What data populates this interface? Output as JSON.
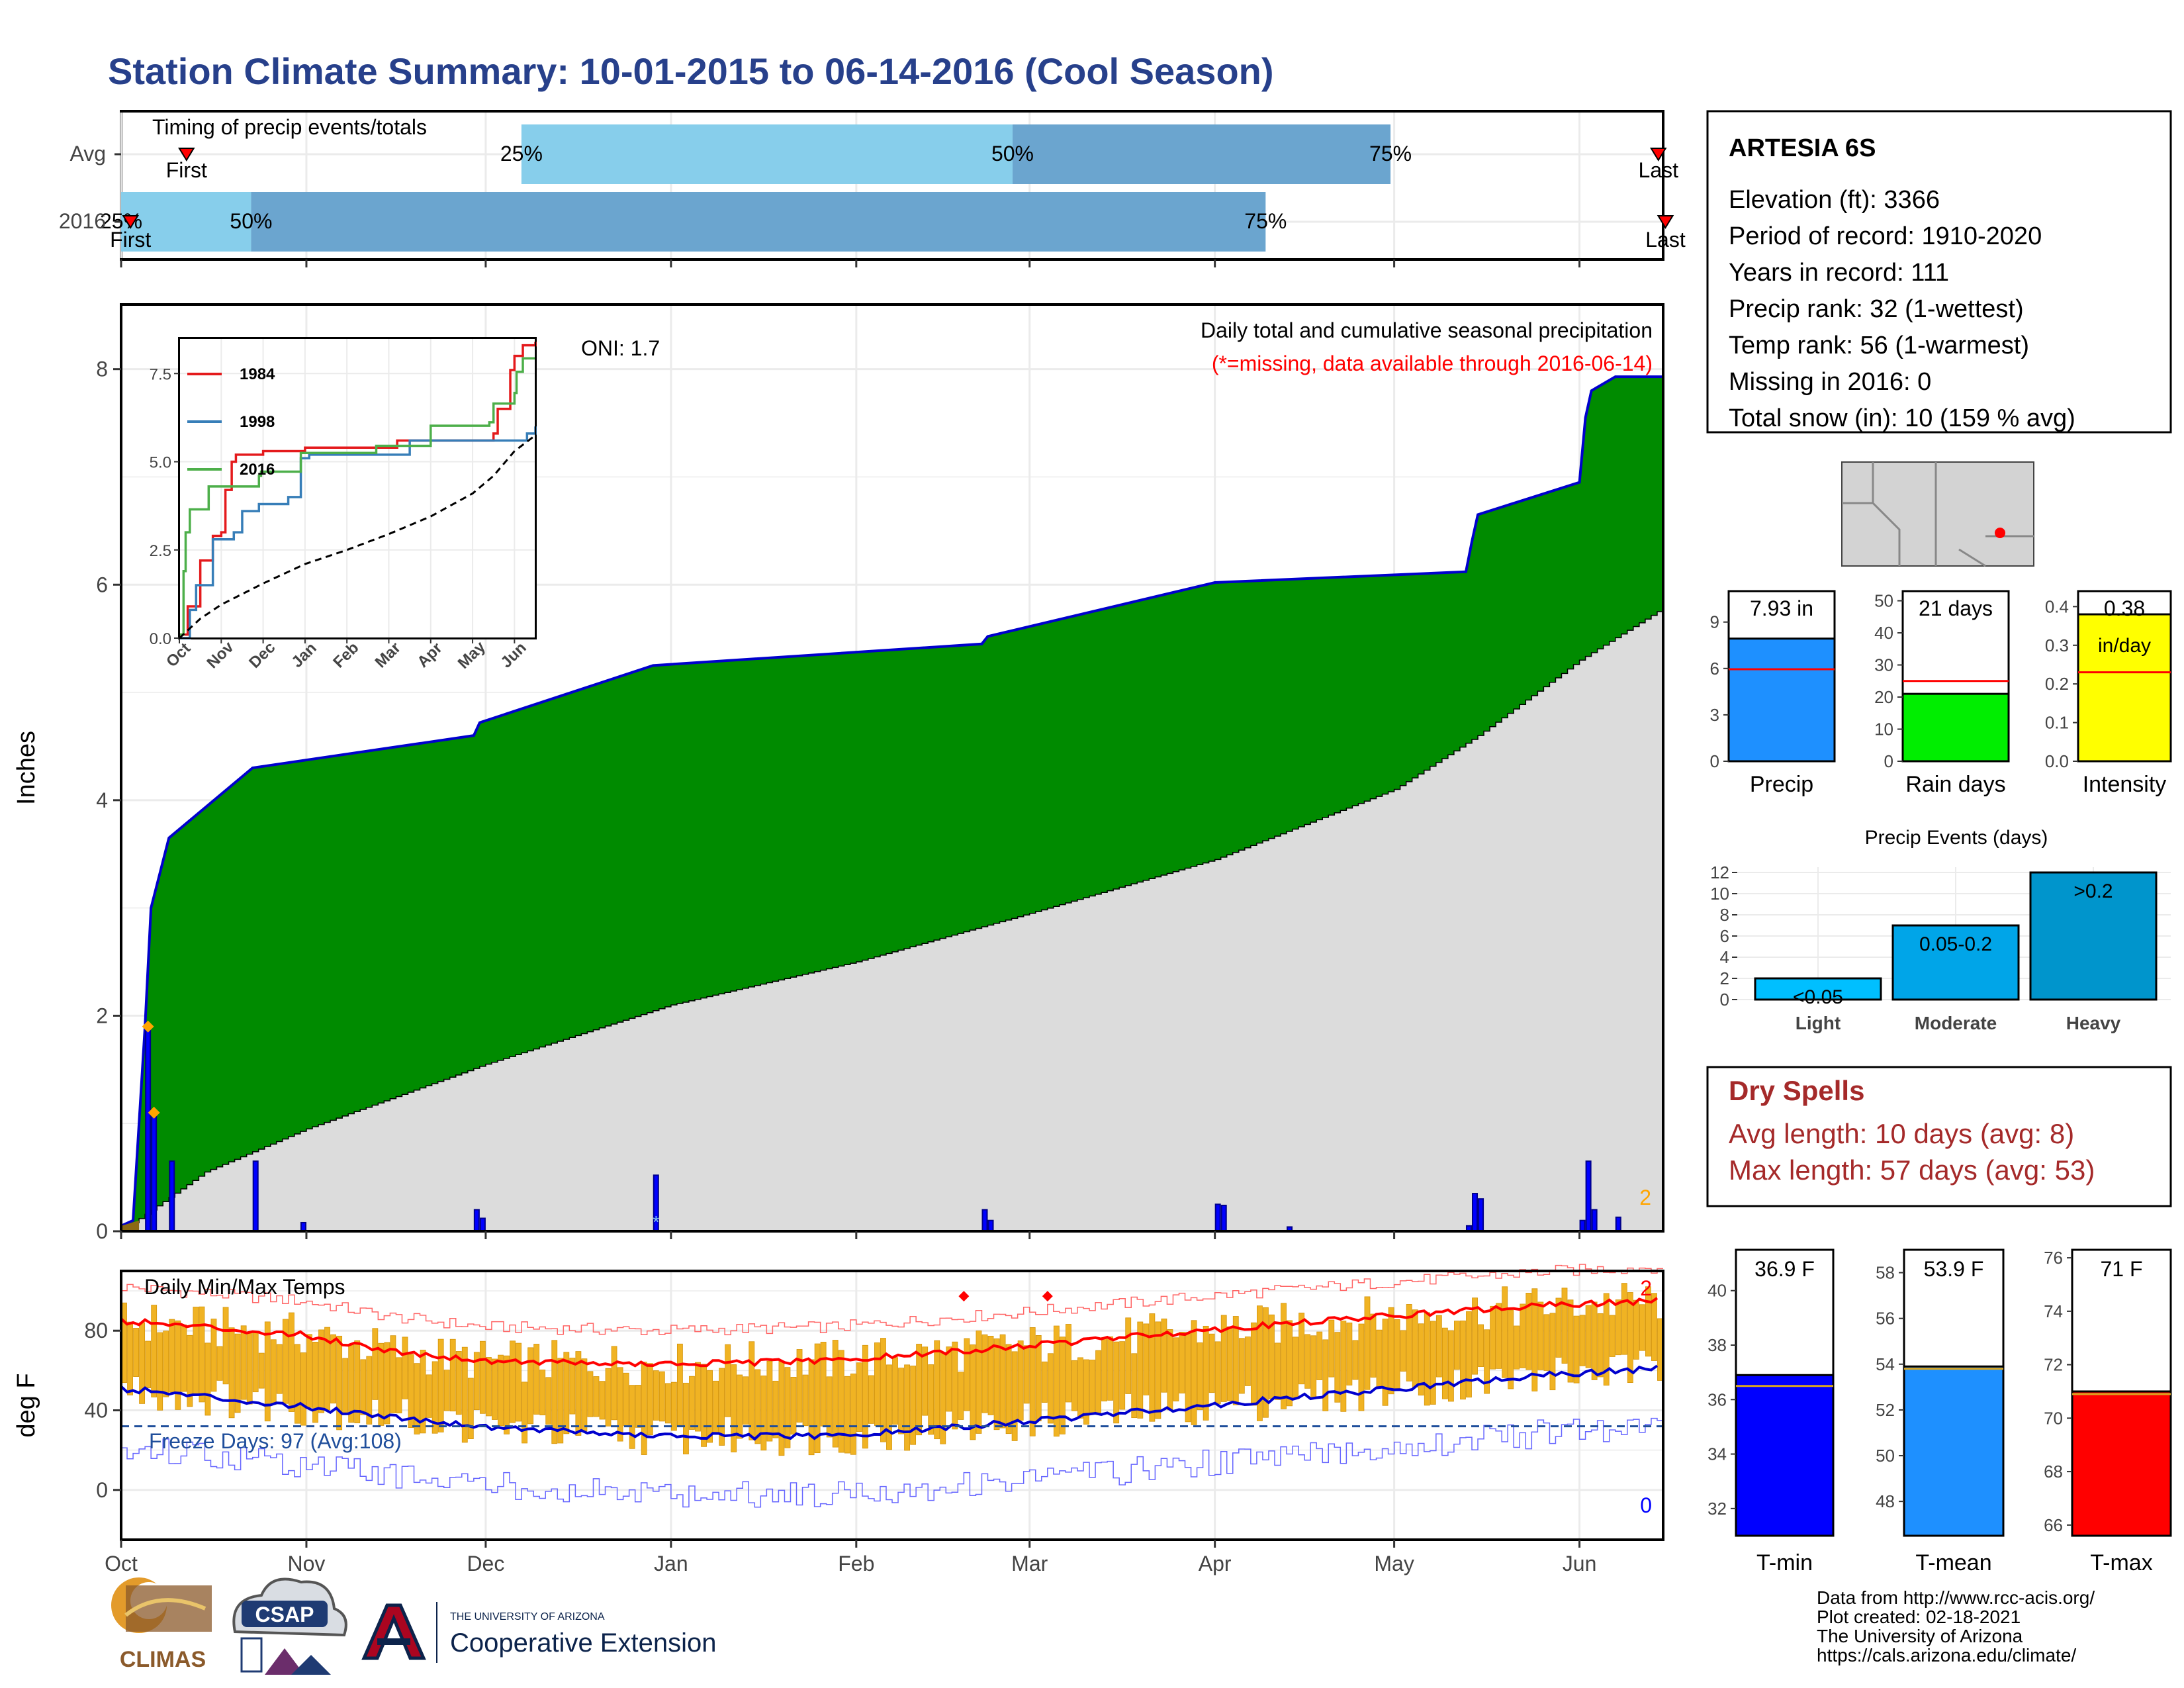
{
  "title": "Station Climate Summary: 10-01-2015 to 06-14-2016 (Cool Season)",
  "months": [
    "Oct",
    "Nov",
    "Dec",
    "Jan",
    "Feb",
    "Mar",
    "Apr",
    "May",
    "Jun"
  ],
  "timing": {
    "label": "Timing of precip events/totals",
    "rows": [
      "Avg",
      "2016"
    ],
    "avg": {
      "p25": 0.2596,
      "p50": 0.5781,
      "p75": 0.8232,
      "first": 0.0424,
      "last": 0.9969
    },
    "y2016": {
      "p25": 0.0,
      "p50": 0.0843,
      "p75": 0.7422,
      "first": 0.0061,
      "last": 1.0015
    },
    "pct_labels": [
      "25%",
      "50%",
      "75%"
    ],
    "first_label": "First",
    "last_label": "Last"
  },
  "precip_panel": {
    "ylabel": "Inches",
    "note1": "Daily total and cumulative seasonal precipitation",
    "note2": "(*=missing, data available through 2016-06-14)",
    "oni": "ONI: 1.7",
    "corner_count": "2",
    "yticks": [
      0,
      2,
      4,
      6,
      8
    ]
  },
  "inset": {
    "legend": [
      "1984",
      "1998",
      "2016"
    ],
    "colors": [
      "#e41a1c",
      "#377eb8",
      "#4daf4a"
    ],
    "yticks": [
      "0.0",
      "2.5",
      "5.0",
      "7.5"
    ]
  },
  "temp_panel": {
    "label": "Daily Min/Max Temps",
    "ylabel": "deg F",
    "freeze": "Freeze Days: 97 (Avg:108)",
    "count_high": "2",
    "count_low": "0",
    "yticks": [
      0,
      40,
      80
    ]
  },
  "station": {
    "name": "ARTESIA 6S",
    "lines": [
      "Elevation (ft): 3366",
      "Period of record: 1910-2020",
      "Years in record: 111",
      "Precip rank: 32 (1-wettest)",
      "Temp rank: 56 (1-warmest)",
      "Missing in 2016: 0",
      "Total snow (in): 10 (159 % avg)"
    ]
  },
  "mini_bars": [
    {
      "label": "Precip",
      "value_label": "7.93 in",
      "value": 7.93,
      "avg": 5.95,
      "max": 11,
      "ticks": [
        0,
        3,
        6,
        9
      ],
      "color": "#1e90ff"
    },
    {
      "label": "Rain days",
      "value_label": "21 days",
      "value": 21,
      "avg": 25,
      "max": 53,
      "ticks": [
        0,
        10,
        20,
        30,
        40,
        50
      ],
      "color": "#00ee00"
    },
    {
      "label": "Intensity",
      "value_label": "0.38",
      "value_label2": "in/day",
      "value": 0.38,
      "avg": 0.23,
      "max": 0.44,
      "ticks": [
        "0.0",
        "0.1",
        "0.2",
        "0.3",
        "0.4"
      ],
      "color": "#ffff00"
    }
  ],
  "events": {
    "title": "Precip Events (days)",
    "yticks": [
      0,
      2,
      4,
      6,
      8,
      10,
      12
    ],
    "bars": [
      {
        "label": "Light",
        "text": "<0.05",
        "value": 2,
        "color": "#00bfff"
      },
      {
        "label": "Moderate",
        "text": "0.05-0.2",
        "value": 7,
        "color": "#00a5e8"
      },
      {
        "label": "Heavy",
        "text": ">0.2",
        "value": 12,
        "color": "#0095cc"
      }
    ]
  },
  "dry_spells": {
    "title": "Dry Spells",
    "avg": "Avg length: 10 days (avg: 8)",
    "max": "Max length: 57 days (avg: 53)"
  },
  "temp_bars": [
    {
      "label": "T-min",
      "value_label": "36.9 F",
      "value": 36.9,
      "avg": 36.5,
      "min": 31,
      "max": 41.5,
      "ticks": [
        32,
        34,
        36,
        38,
        40
      ],
      "color": "#0000ff"
    },
    {
      "label": "T-mean",
      "value_label": "53.9 F",
      "value": 53.9,
      "avg": 53.8,
      "min": 46.5,
      "max": 59,
      "ticks": [
        48,
        50,
        52,
        54,
        56,
        58
      ],
      "color": "#1e90ff"
    },
    {
      "label": "T-max",
      "value_label": "71 F",
      "value": 71,
      "avg": 70.9,
      "min": 65.6,
      "max": 76.3,
      "ticks": [
        66,
        68,
        70,
        72,
        74,
        76
      ],
      "color": "#ff0000"
    }
  ],
  "footer": [
    "Data from http://www.rcc-acis.org/",
    "Plot created: 02-18-2021",
    "The University of Arizona",
    "https://cals.arizona.edu/climate/"
  ],
  "logos": {
    "climas": "CLIMAS",
    "csap": "CSAP",
    "ua_small": "THE UNIVERSITY OF ARIZONA",
    "ua_big": "Cooperative Extension"
  },
  "chart_data": [
    {
      "type": "area",
      "title": "Daily total and cumulative seasonal precipitation",
      "ylabel": "Inches",
      "ylim": [
        0,
        8.6
      ],
      "cumulative_2016": [
        {
          "date": "2015-10-01",
          "v": 0.05
        },
        {
          "date": "2015-10-03",
          "v": 0.1
        },
        {
          "date": "2015-10-05",
          "v": 1.9
        },
        {
          "date": "2015-10-06",
          "v": 3.0
        },
        {
          "date": "2015-10-09",
          "v": 3.65
        },
        {
          "date": "2015-10-23",
          "v": 4.3
        },
        {
          "date": "2015-11-29",
          "v": 4.6
        },
        {
          "date": "2015-11-30",
          "v": 4.72
        },
        {
          "date": "2015-12-29",
          "v": 5.25
        },
        {
          "date": "2016-02-22",
          "v": 5.45
        },
        {
          "date": "2016-02-23",
          "v": 5.52
        },
        {
          "date": "2016-04-01",
          "v": 6.02
        },
        {
          "date": "2016-05-13",
          "v": 6.12
        },
        {
          "date": "2016-05-14",
          "v": 6.4
        },
        {
          "date": "2016-05-15",
          "v": 6.65
        },
        {
          "date": "2016-06-01",
          "v": 6.95
        },
        {
          "date": "2016-06-02",
          "v": 7.55
        },
        {
          "date": "2016-06-03",
          "v": 7.8
        },
        {
          "date": "2016-06-07",
          "v": 7.93
        }
      ],
      "cumulative_avg": [
        {
          "date": "2015-10-01",
          "v": 0.0
        },
        {
          "date": "2015-10-15",
          "v": 0.55
        },
        {
          "date": "2015-11-01",
          "v": 0.95
        },
        {
          "date": "2015-12-01",
          "v": 1.55
        },
        {
          "date": "2016-01-01",
          "v": 2.1
        },
        {
          "date": "2016-02-01",
          "v": 2.5
        },
        {
          "date": "2016-03-01",
          "v": 2.95
        },
        {
          "date": "2016-04-01",
          "v": 3.45
        },
        {
          "date": "2016-05-01",
          "v": 4.1
        },
        {
          "date": "2016-05-15",
          "v": 4.6
        },
        {
          "date": "2016-06-01",
          "v": 5.3
        },
        {
          "date": "2016-06-14",
          "v": 5.75
        }
      ],
      "daily_2016": [
        {
          "date": "2015-10-05",
          "v": 1.9
        },
        {
          "date": "2015-10-06",
          "v": 1.1
        },
        {
          "date": "2015-10-09",
          "v": 0.65
        },
        {
          "date": "2015-10-23",
          "v": 0.65
        },
        {
          "date": "2015-10-31",
          "v": 0.08
        },
        {
          "date": "2015-11-29",
          "v": 0.2
        },
        {
          "date": "2015-11-30",
          "v": 0.12
        },
        {
          "date": "2015-12-29",
          "v": 0.52
        },
        {
          "date": "2016-02-22",
          "v": 0.2
        },
        {
          "date": "2016-02-23",
          "v": 0.1
        },
        {
          "date": "2016-04-01",
          "v": 0.25
        },
        {
          "date": "2016-04-02",
          "v": 0.24
        },
        {
          "date": "2016-04-13",
          "v": 0.04
        },
        {
          "date": "2016-05-13",
          "v": 0.05
        },
        {
          "date": "2016-05-14",
          "v": 0.35
        },
        {
          "date": "2016-05-15",
          "v": 0.3
        },
        {
          "date": "2016-06-01",
          "v": 0.1
        },
        {
          "date": "2016-06-02",
          "v": 0.65
        },
        {
          "date": "2016-06-03",
          "v": 0.2
        },
        {
          "date": "2016-06-07",
          "v": 0.13
        }
      ]
    },
    {
      "type": "line",
      "title": "inset",
      "xlabels": [
        "Oct",
        "Nov",
        "Dec",
        "Jan",
        "Feb",
        "Mar",
        "Apr",
        "May",
        "Jun"
      ],
      "ylim": [
        0,
        8.5
      ],
      "series": [
        {
          "name": "1984",
          "points": [
            [
              0,
              0.1
            ],
            [
              0.2,
              0.9
            ],
            [
              0.5,
              2.2
            ],
            [
              0.8,
              2.9
            ],
            [
              1.0,
              3.0
            ],
            [
              1.1,
              4.2
            ],
            [
              1.25,
              5.0
            ],
            [
              1.35,
              5.2
            ],
            [
              2.0,
              5.3
            ],
            [
              3.0,
              5.4
            ],
            [
              5.2,
              5.6
            ],
            [
              7.5,
              5.8
            ],
            [
              7.6,
              6.5
            ],
            [
              7.9,
              7.6
            ],
            [
              8.0,
              8.0
            ],
            [
              8.2,
              8.3
            ],
            [
              8.5,
              8.4
            ]
          ]
        },
        {
          "name": "1998",
          "points": [
            [
              0,
              0
            ],
            [
              0.25,
              0.8
            ],
            [
              0.4,
              1.5
            ],
            [
              0.8,
              2.8
            ],
            [
              1.3,
              3.0
            ],
            [
              1.5,
              3.6
            ],
            [
              1.9,
              3.8
            ],
            [
              2.6,
              4.0
            ],
            [
              2.9,
              5.1
            ],
            [
              3.1,
              5.2
            ],
            [
              5.5,
              5.6
            ],
            [
              8.3,
              5.8
            ],
            [
              8.5,
              6.0
            ]
          ]
        },
        {
          "name": "2016",
          "points": [
            [
              0,
              0.1
            ],
            [
              0.1,
              1.9
            ],
            [
              0.15,
              3.0
            ],
            [
              0.25,
              3.65
            ],
            [
              0.7,
              4.3
            ],
            [
              1.9,
              4.6
            ],
            [
              1.95,
              4.72
            ],
            [
              2.9,
              5.25
            ],
            [
              4.7,
              5.45
            ],
            [
              6.0,
              6.02
            ],
            [
              7.4,
              6.12
            ],
            [
              7.5,
              6.65
            ],
            [
              8.0,
              6.95
            ],
            [
              8.05,
              7.55
            ],
            [
              8.2,
              7.93
            ],
            [
              8.5,
              7.93
            ]
          ]
        },
        {
          "name": "avg",
          "points": [
            [
              0,
              0
            ],
            [
              0.5,
              0.55
            ],
            [
              1.0,
              0.95
            ],
            [
              2.0,
              1.55
            ],
            [
              3.0,
              2.1
            ],
            [
              4.0,
              2.5
            ],
            [
              5.0,
              2.95
            ],
            [
              6.0,
              3.45
            ],
            [
              7.0,
              4.1
            ],
            [
              7.5,
              4.6
            ],
            [
              8.0,
              5.3
            ],
            [
              8.5,
              5.75
            ]
          ]
        }
      ]
    },
    {
      "type": "line",
      "title": "Daily Min/Max Temps",
      "ylabel": "deg F",
      "ylim": [
        -25,
        110
      ],
      "avg_max": [
        [
          0,
          85
        ],
        [
          30,
          78
        ],
        [
          45,
          70
        ],
        [
          60,
          65
        ],
        [
          90,
          63
        ],
        [
          120,
          65
        ],
        [
          150,
          72
        ],
        [
          180,
          80
        ],
        [
          210,
          87
        ],
        [
          240,
          93
        ],
        [
          257,
          95
        ]
      ],
      "avg_min": [
        [
          0,
          51
        ],
        [
          30,
          42
        ],
        [
          60,
          32
        ],
        [
          90,
          27
        ],
        [
          120,
          27
        ],
        [
          150,
          34
        ],
        [
          180,
          42
        ],
        [
          210,
          50
        ],
        [
          240,
          58
        ],
        [
          257,
          61
        ]
      ],
      "freeze_line": 32,
      "record_high_markers": [
        [
          141,
          90
        ],
        [
          155,
          90
        ]
      ]
    }
  ]
}
